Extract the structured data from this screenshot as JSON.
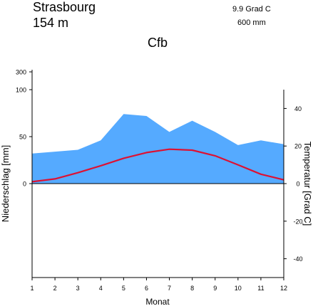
{
  "header": {
    "station": "Strasbourg",
    "elevation": "154 m",
    "annual_temp": "9.9 Grad C",
    "annual_precip": "600 mm",
    "climate_class": "Cfb"
  },
  "chart_data": {
    "type": "area",
    "xlabel": "Monat",
    "ylabel_left": "Niederschlag [mm]",
    "ylabel_right": "Temperatur [Grad C]",
    "x": [
      1,
      2,
      3,
      4,
      5,
      6,
      7,
      8,
      9,
      10,
      11,
      12
    ],
    "x_ticks": [
      "1",
      "2",
      "3",
      "4",
      "5",
      "6",
      "7",
      "8",
      "9",
      "10",
      "11",
      "12"
    ],
    "precip_ticks": [
      "300",
      "100",
      "50",
      "0"
    ],
    "temp_ticks": [
      "40",
      "20",
      "0",
      "-20",
      "-40"
    ],
    "series": [
      {
        "kind": "area",
        "axis": "left",
        "color": "#55aaff",
        "values": [
          32,
          34,
          36,
          46,
          74,
          72,
          55,
          67,
          55,
          41,
          46,
          42
        ]
      },
      {
        "kind": "line",
        "axis": "right",
        "color": "#dd1133",
        "values": [
          1.0,
          2.5,
          5.8,
          9.5,
          13.5,
          16.5,
          18.3,
          17.8,
          14.8,
          10.0,
          5.0,
          2.0
        ]
      }
    ],
    "precip_scale": "linear 0-100 mm, compressed 100-300 mm",
    "temp_range": [
      -50,
      50
    ],
    "grid": false
  }
}
